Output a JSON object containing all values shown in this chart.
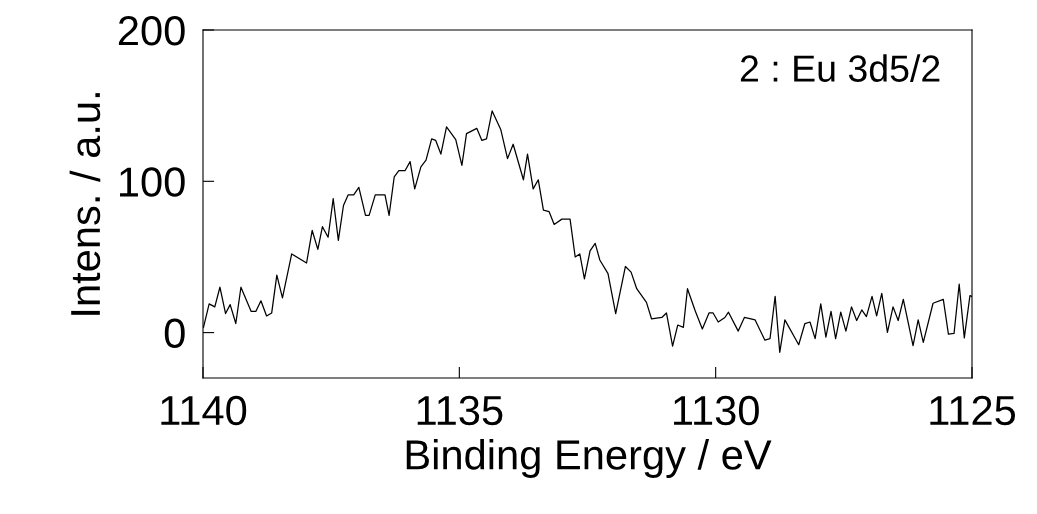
{
  "chart_data": {
    "type": "line",
    "xlabel": "Binding Energy / eV",
    "ylabel": "Intens. / a.u.",
    "annotations": [
      "2 : Eu 3d5/2"
    ],
    "x": [
      1139.99,
      1139.88,
      1139.77,
      1139.67,
      1139.56,
      1139.47,
      1139.36,
      1139.26,
      1139.06,
      1138.97,
      1138.87,
      1138.76,
      1138.66,
      1138.56,
      1138.45,
      1138.27,
      1137.98,
      1137.87,
      1137.76,
      1137.67,
      1137.56,
      1137.46,
      1137.36,
      1137.26,
      1137.17,
      1137.06,
      1136.96,
      1136.83,
      1136.76,
      1136.64,
      1136.45,
      1136.37,
      1136.27,
      1136.18,
      1136.06,
      1135.96,
      1135.87,
      1135.75,
      1135.65,
      1135.54,
      1135.46,
      1135.36,
      1135.25,
      1135.07,
      1134.95,
      1134.86,
      1134.66,
      1134.56,
      1134.47,
      1134.36,
      1134.19,
      1134.06,
      1133.95,
      1133.75,
      1133.67,
      1133.56,
      1133.46,
      1133.36,
      1133.25,
      1133.15,
      1133.0,
      1132.84,
      1132.74,
      1132.65,
      1132.56,
      1132.45,
      1132.35,
      1132.26,
      1132.1,
      1131.95,
      1131.76,
      1131.65,
      1131.54,
      1131.35,
      1131.25,
      1131.05,
      1130.96,
      1130.84,
      1130.74,
      1130.63,
      1130.55,
      1130.4,
      1130.26,
      1130.13,
      1130.05,
      1129.95,
      1129.82,
      1129.75,
      1129.56,
      1129.44,
      1129.23,
      1129.04,
      1128.94,
      1128.84,
      1128.75,
      1128.65,
      1128.38,
      1128.26,
      1128.16,
      1128.06,
      1127.95,
      1127.85,
      1127.75,
      1127.66,
      1127.56,
      1127.46,
      1127.35,
      1127.25,
      1127.15,
      1127.06,
      1126.95,
      1126.86,
      1126.76,
      1126.65,
      1126.54,
      1126.44,
      1126.34,
      1126.15,
      1126.05,
      1125.95,
      1125.76,
      1125.56,
      1125.46,
      1125.35,
      1125.25,
      1125.15,
      1125.04,
      1125.01
    ],
    "series": [
      {
        "color": "#000000",
        "values": [
          3.5,
          19,
          17,
          30,
          12.6,
          18.5,
          6,
          30,
          14,
          14,
          21,
          11,
          13,
          38,
          23,
          52,
          46,
          67.5,
          55,
          70,
          63,
          88.5,
          61,
          84,
          91,
          91,
          96,
          77.5,
          77.5,
          91,
          91,
          77.5,
          103,
          107,
          107,
          113,
          95,
          109.5,
          114,
          128,
          127,
          118,
          136,
          127.5,
          110.5,
          131.5,
          135,
          127,
          128,
          146.5,
          134,
          115,
          124.5,
          101,
          118,
          95,
          101,
          81,
          80,
          71.5,
          75,
          75,
          50,
          52,
          35.5,
          54,
          59,
          48,
          39,
          12.5,
          43.7,
          40,
          29,
          20,
          9,
          10,
          13,
          -9,
          5,
          3.5,
          29,
          14.5,
          2.4,
          13,
          13,
          7,
          10,
          13.5,
          1,
          10,
          8.4,
          -5,
          -4,
          24,
          -13,
          8.4,
          -8,
          6,
          7,
          -4,
          19,
          -3,
          14,
          -4,
          13.5,
          1,
          17,
          8,
          15,
          10.6,
          24,
          11,
          26,
          0.2,
          17,
          8,
          22,
          -8.6,
          8.4,
          -6.4,
          19.4,
          22,
          -1,
          -0.5,
          32,
          -3.5,
          24.5,
          24
        ]
      }
    ],
    "xlim": [
      1140,
      1125
    ],
    "xticks": [
      1140,
      1135,
      1130,
      1125
    ],
    "ylim": [
      -30,
      200
    ],
    "yticks": [
      0,
      100,
      200
    ],
    "grid": false,
    "legend": false,
    "marker": "none",
    "line_style": "solid"
  }
}
